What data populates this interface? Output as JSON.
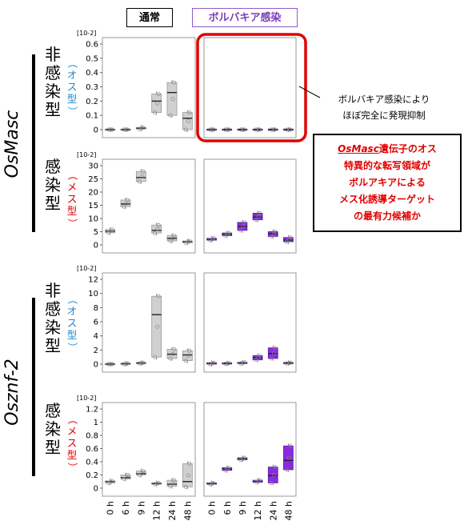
{
  "headers": {
    "normal": "通常",
    "wolbachia": "ボルバキア感染"
  },
  "genes": [
    "OsMasc",
    "Osznf-2"
  ],
  "row_labels": [
    {
      "main": "非感染型",
      "sub": "（オス型）",
      "sub_color": "#1f8ad0"
    },
    {
      "main": "感染型",
      "sub": "（メス型）",
      "sub_color": "#e00000"
    },
    {
      "main": "非感染型",
      "sub": "（オス型）",
      "sub_color": "#1f8ad0"
    },
    {
      "main": "感染型",
      "sub": "（メス型）",
      "sub_color": "#e00000"
    }
  ],
  "note1": [
    "ボルバキア感染により",
    "ほぼ完全に発現抑制"
  ],
  "note2": {
    "gene": "OsMasc",
    "lines": [
      "遺伝子のオス",
      "特異的な転写領域が",
      "ボルアキアによる",
      "メス化誘導ターゲット",
      "の最有力候補か"
    ]
  },
  "colors": {
    "normal_box": "#d0d0d0",
    "wolbachia_box": "#8a2be2",
    "highlight": "#e00000"
  },
  "chart_data": {
    "type": "box",
    "x": [
      "0 h",
      "6 h",
      "9 h",
      "12 h",
      "24 h",
      "48 h"
    ],
    "panels": [
      {
        "gene": "OsMasc",
        "row": "非感染型",
        "condition": "通常",
        "scale": "[10-2]",
        "yticks": [
          "0",
          "0.1",
          "0.2",
          "0.3",
          "0.4",
          "0.5",
          "0.6"
        ],
        "ylim": [
          0,
          0.6
        ],
        "boxes": [
          [
            0,
            0,
            0
          ],
          [
            0,
            0,
            0
          ],
          [
            0.005,
            0.01,
            0.015
          ],
          [
            0.12,
            0.2,
            0.25
          ],
          [
            0.1,
            0.26,
            0.33
          ],
          [
            0,
            0.08,
            0.12
          ]
        ]
      },
      {
        "gene": "OsMasc",
        "row": "非感染型",
        "condition": "ボルバキア感染",
        "scale": "",
        "yticks": [],
        "ylim": [
          0,
          0.6
        ],
        "highlight": true,
        "boxes": [
          [
            0,
            0,
            0
          ],
          [
            0,
            0,
            0
          ],
          [
            0,
            0,
            0
          ],
          [
            0,
            0,
            0
          ],
          [
            0,
            0,
            0
          ],
          [
            0,
            0,
            0
          ]
        ]
      },
      {
        "gene": "OsMasc",
        "row": "感染型",
        "condition": "通常",
        "scale": "[10-2]",
        "yticks": [
          "0",
          "5",
          "10",
          "15",
          "20",
          "25",
          "30"
        ],
        "ylim": [
          0,
          30
        ],
        "boxes": [
          [
            4.6,
            5.2,
            5.8
          ],
          [
            14.5,
            15.5,
            17
          ],
          [
            24,
            25.5,
            27.8
          ],
          [
            4.5,
            5.5,
            7.5
          ],
          [
            1.5,
            2.5,
            3.5
          ],
          [
            0.8,
            1.2,
            1.5
          ]
        ]
      },
      {
        "gene": "OsMasc",
        "row": "感染型",
        "condition": "ボルバキア感染",
        "scale": "",
        "yticks": [],
        "ylim": [
          0,
          30
        ],
        "boxes": [
          [
            1.8,
            2,
            2.5
          ],
          [
            3.5,
            4,
            4.5
          ],
          [
            5.5,
            7,
            8.5
          ],
          [
            9.5,
            10.5,
            12
          ],
          [
            3.2,
            4.2,
            5
          ],
          [
            1.2,
            1.8,
            2.8
          ]
        ]
      },
      {
        "gene": "Osznf-2",
        "row": "非感染型",
        "condition": "通常",
        "scale": "[10-2]",
        "yticks": [
          "0",
          "2",
          "4",
          "6",
          "8",
          "10",
          "12"
        ],
        "ylim": [
          0,
          12
        ],
        "boxes": [
          [
            0,
            0,
            0
          ],
          [
            0,
            0.05,
            0.1
          ],
          [
            0.1,
            0.15,
            0.2
          ],
          [
            1,
            7,
            9.6
          ],
          [
            0.8,
            1.4,
            2.1
          ],
          [
            0.5,
            1.3,
            1.9
          ]
        ]
      },
      {
        "gene": "Osznf-2",
        "row": "非感染型",
        "condition": "ボルバキア感染",
        "scale": "",
        "yticks": [],
        "ylim": [
          0,
          12
        ],
        "boxes": [
          [
            0,
            0.1,
            0.2
          ],
          [
            0.05,
            0.1,
            0.15
          ],
          [
            0.1,
            0.15,
            0.25
          ],
          [
            0.6,
            0.9,
            1.2
          ],
          [
            0.8,
            1.5,
            2.3
          ],
          [
            0.1,
            0.15,
            0.2
          ]
        ]
      },
      {
        "gene": "Osznf-2",
        "row": "感染型",
        "condition": "通常",
        "scale": "[10-2]",
        "yticks": [
          "0",
          "0.2",
          "0.4",
          "0.6",
          "0.8",
          "1",
          "1.2"
        ],
        "ylim": [
          0,
          1.2
        ],
        "boxes": [
          [
            0.08,
            0.1,
            0.11
          ],
          [
            0.14,
            0.16,
            0.2
          ],
          [
            0.2,
            0.22,
            0.26
          ],
          [
            0.06,
            0.07,
            0.08
          ],
          [
            0.03,
            0.06,
            0.12
          ],
          [
            0.02,
            0.1,
            0.37
          ]
        ]
      },
      {
        "gene": "Osznf-2",
        "row": "感染型",
        "condition": "ボルバキア感染",
        "scale": "",
        "yticks": [],
        "ylim": [
          0,
          1.2
        ],
        "boxes": [
          [
            0.06,
            0.07,
            0.08
          ],
          [
            0.27,
            0.29,
            0.31
          ],
          [
            0.43,
            0.45,
            0.46
          ],
          [
            0.09,
            0.1,
            0.12
          ],
          [
            0.08,
            0.19,
            0.32
          ],
          [
            0.28,
            0.42,
            0.64
          ]
        ]
      }
    ]
  }
}
